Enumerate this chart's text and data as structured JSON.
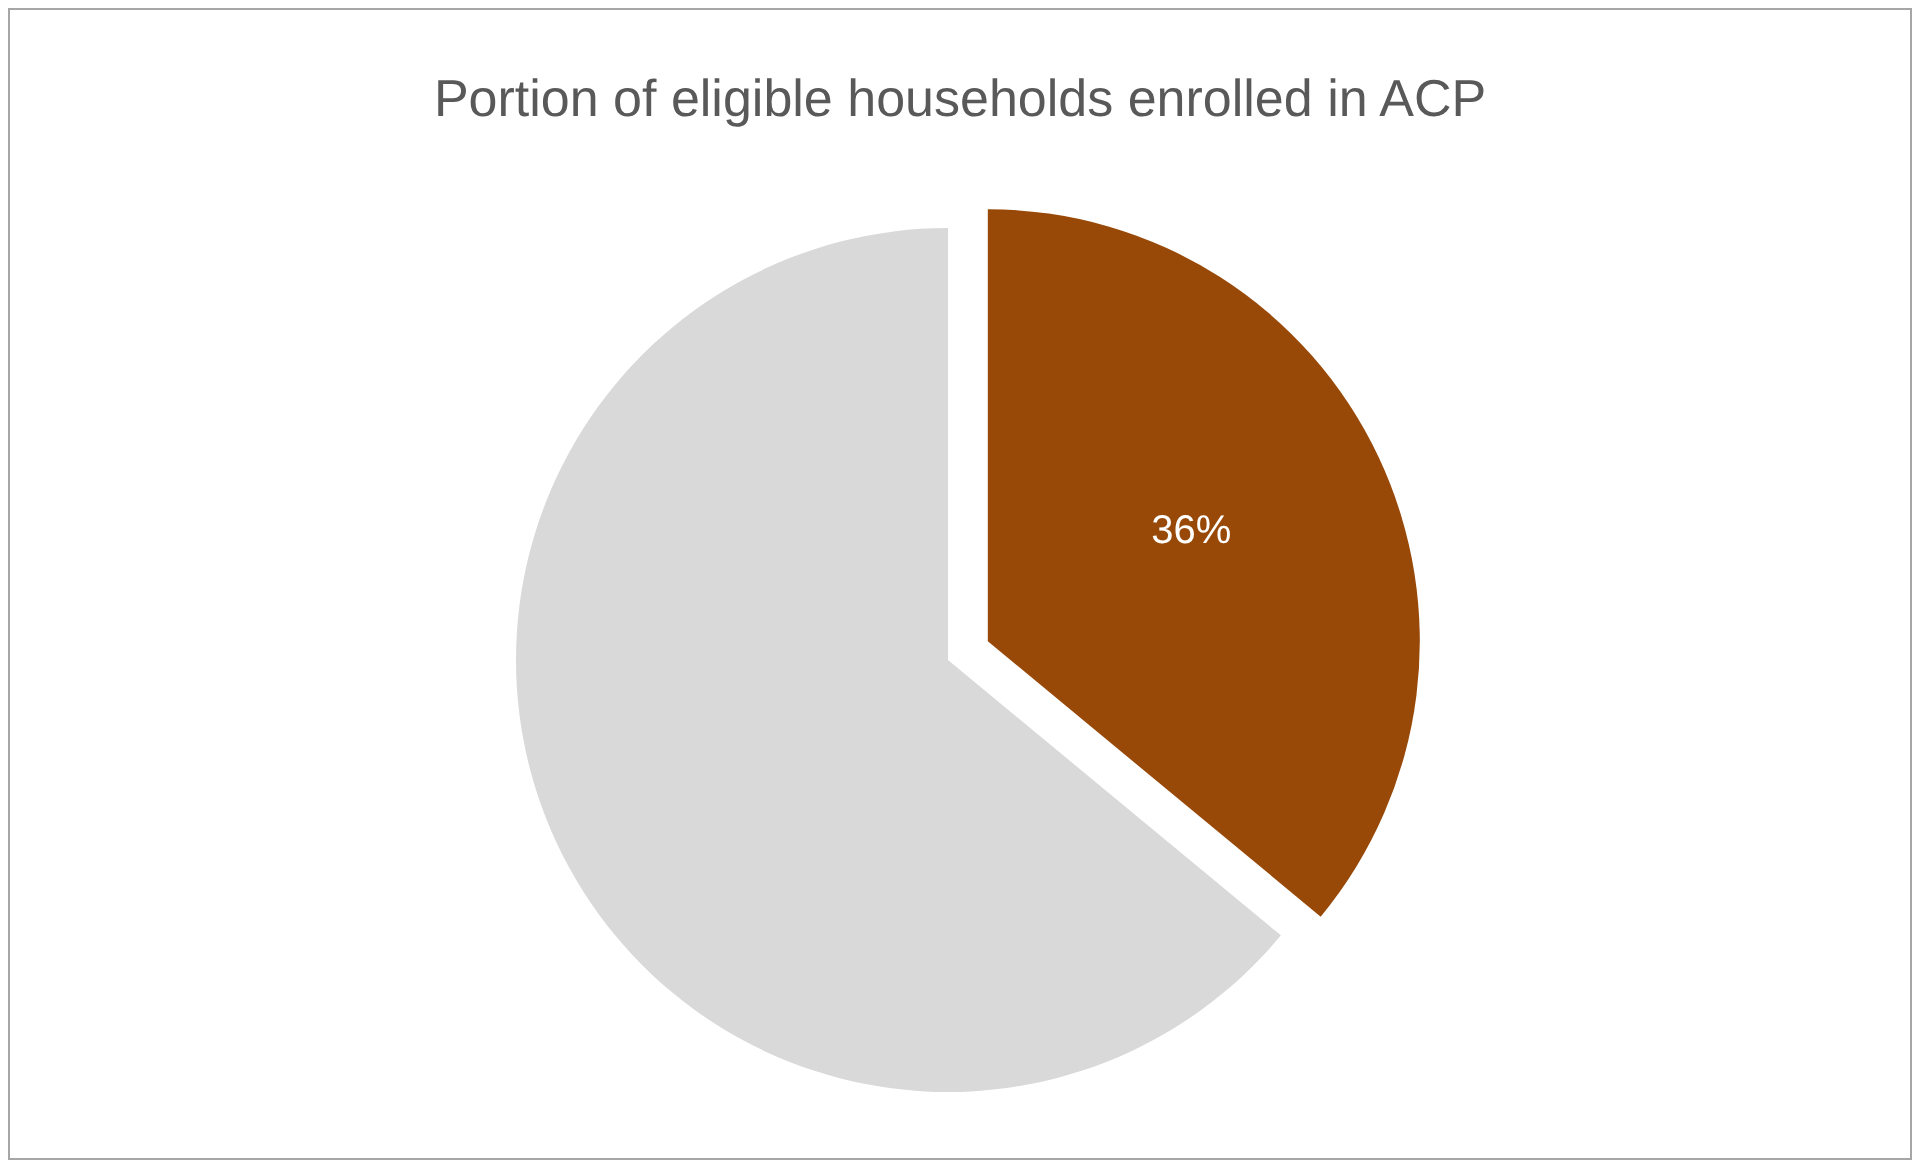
{
  "chart_data": {
    "type": "pie",
    "title": "Portion of eligible households enrolled in ACP",
    "categories": [
      null,
      null
    ],
    "values": [
      36,
      64
    ],
    "colors": [
      "#984807",
      "#d9d9d9"
    ],
    "value_labels": [
      "36%",
      null
    ]
  }
}
